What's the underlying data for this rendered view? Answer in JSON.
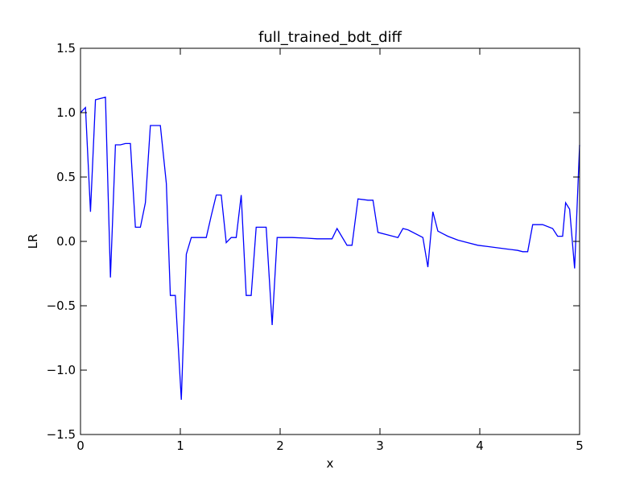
{
  "chart_data": {
    "type": "line",
    "title": "full_trained_bdt_diff",
    "xlabel": "x",
    "ylabel": "LR",
    "xlim": [
      0,
      5
    ],
    "ylim": [
      -1.5,
      1.5
    ],
    "grid": false,
    "x_ticks": [
      0,
      1,
      2,
      3,
      4,
      5
    ],
    "x_tick_labels": [
      "0",
      "1",
      "2",
      "3",
      "4",
      "5"
    ],
    "y_ticks": [
      -1.5,
      -1.0,
      -0.5,
      0.0,
      0.5,
      1.0,
      1.5
    ],
    "y_tick_labels": [
      "−1.5",
      "−1.0",
      "−0.5",
      "0.0",
      "0.5",
      "1.0",
      "1.5"
    ],
    "series": [
      {
        "color": "#0000ff",
        "x": [
          0.0,
          0.05,
          0.1,
          0.15,
          0.2,
          0.25,
          0.3,
          0.35,
          0.4,
          0.45,
          0.5,
          0.55,
          0.6,
          0.65,
          0.7,
          0.75,
          0.8,
          0.86,
          0.9,
          0.95,
          1.01,
          1.06,
          1.11,
          1.16,
          1.21,
          1.26,
          1.31,
          1.36,
          1.41,
          1.46,
          1.51,
          1.56,
          1.61,
          1.66,
          1.71,
          1.76,
          1.81,
          1.86,
          1.92,
          1.97,
          2.02,
          2.12,
          2.27,
          2.37,
          2.47,
          2.52,
          2.57,
          2.67,
          2.72,
          2.78,
          2.88,
          2.93,
          2.98,
          3.08,
          3.18,
          3.23,
          3.28,
          3.43,
          3.48,
          3.53,
          3.58,
          3.63,
          3.68,
          3.78,
          3.88,
          3.98,
          4.08,
          4.18,
          4.28,
          4.38,
          4.43,
          4.48,
          4.53,
          4.58,
          4.63,
          4.73,
          4.78,
          4.83,
          4.86,
          4.9,
          4.95,
          5.0
        ],
        "y": [
          1.0,
          1.04,
          0.23,
          1.1,
          1.11,
          1.12,
          -0.28,
          0.75,
          0.75,
          0.76,
          0.76,
          0.11,
          0.11,
          0.3,
          0.9,
          0.9,
          0.9,
          0.45,
          -0.42,
          -0.42,
          -1.23,
          -0.1,
          0.03,
          0.03,
          0.03,
          0.03,
          0.2,
          0.36,
          0.36,
          -0.01,
          0.03,
          0.03,
          0.36,
          -0.42,
          -0.42,
          0.11,
          0.11,
          0.11,
          -0.65,
          0.03,
          0.03,
          0.03,
          0.025,
          0.02,
          0.02,
          0.02,
          0.1,
          -0.03,
          -0.03,
          0.33,
          0.32,
          0.32,
          0.07,
          0.05,
          0.03,
          0.1,
          0.09,
          0.03,
          -0.2,
          0.23,
          0.08,
          0.06,
          0.04,
          0.01,
          -0.01,
          -0.03,
          -0.04,
          -0.05,
          -0.06,
          -0.07,
          -0.08,
          -0.08,
          0.13,
          0.13,
          0.13,
          0.1,
          0.04,
          0.04,
          0.3,
          0.25,
          -0.21,
          0.75
        ]
      }
    ]
  }
}
